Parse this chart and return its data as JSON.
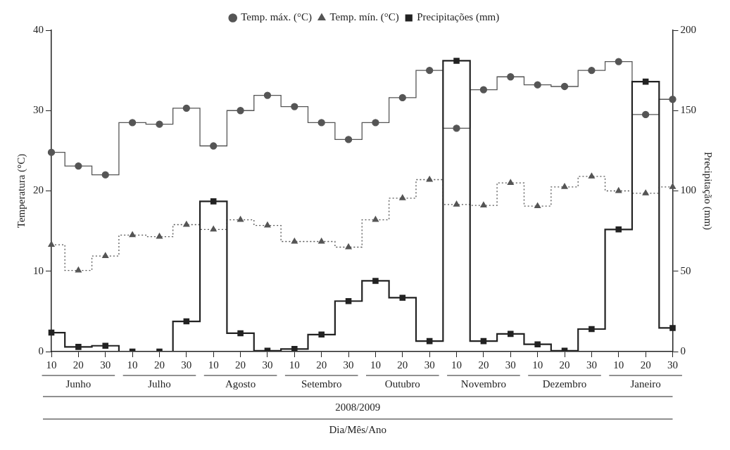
{
  "chart_data": {
    "type": "step",
    "ylabel": "Temperatura (°C)",
    "y2label": "Precipitação (mm)",
    "categories": [
      "10",
      "20",
      "30",
      "10",
      "20",
      "30",
      "10",
      "20",
      "30",
      "10",
      "20",
      "30",
      "10",
      "20",
      "30",
      "10",
      "20",
      "30",
      "10",
      "20",
      "30",
      "10",
      "20",
      "30"
    ],
    "series": [
      {
        "name": "Temp. máx. (°C)",
        "color": "#555555",
        "marker": "circle",
        "line_style": "solid",
        "values": [
          24.8,
          23.1,
          22.0,
          28.5,
          28.3,
          30.3,
          25.6,
          30.0,
          31.9,
          30.5,
          28.5,
          26.4,
          28.5,
          31.6,
          35.0,
          27.8,
          32.6,
          34.2,
          33.2,
          33.0,
          35.0,
          36.1,
          29.5,
          31.4
        ]
      },
      {
        "name": "Temp. mín. (°C)",
        "color": "#555555",
        "marker": "triangle",
        "line_style": "dotted",
        "values": [
          13.3,
          10.1,
          11.9,
          14.5,
          14.3,
          15.8,
          15.2,
          16.4,
          15.7,
          13.7,
          13.7,
          13.0,
          16.4,
          19.1,
          21.4,
          18.3,
          18.2,
          21.0,
          18.1,
          20.5,
          21.8,
          20.0,
          19.7,
          20.5
        ]
      },
      {
        "name": "Precipitações (mm)",
        "color": "#222222",
        "marker": "square",
        "line_style": "solid",
        "axis": "y2",
        "values": [
          11.8,
          2.9,
          3.6,
          0,
          0,
          18.8,
          93.5,
          11.4,
          0.5,
          1.6,
          10.6,
          31.4,
          44,
          33.5,
          6.5,
          181,
          6.5,
          11,
          4.5,
          0.5,
          14,
          76,
          168,
          14.7
        ]
      }
    ],
    "ylim": [
      0,
      40
    ],
    "yticks": [
      0,
      10,
      20,
      30,
      40
    ],
    "y2lim": [
      0,
      200
    ],
    "y2ticks": [
      0,
      50,
      100,
      150,
      200
    ],
    "annotations": [
      "Junho",
      "Julho",
      "Agosto",
      "Setembro",
      "Outubro",
      "Novembro",
      "Dezembro",
      "Janeiro",
      "2008/2009",
      "Dia/Mês/Ano"
    ],
    "grid": false,
    "legend": "top"
  }
}
